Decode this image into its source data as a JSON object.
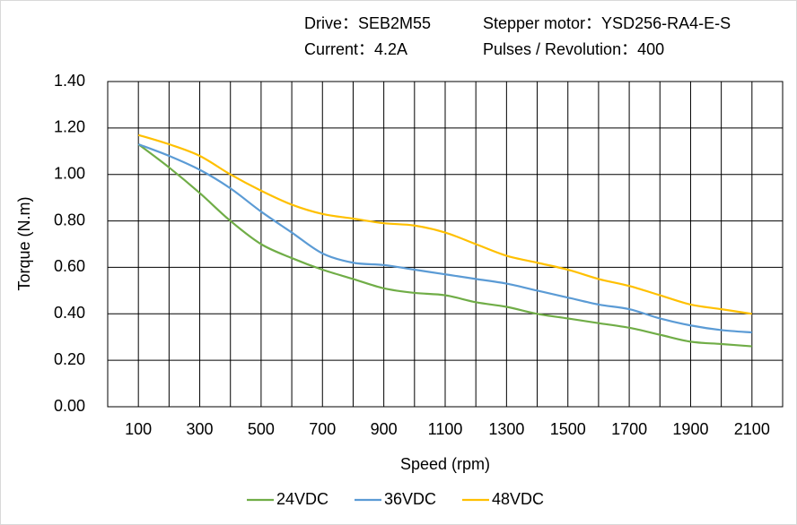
{
  "chart_data": {
    "type": "line",
    "annotations": [
      "Drive：SEB2M55",
      "Stepper motor：YSD256-RA4-E-S",
      "Current：4.2A",
      "Pulses / Revolution：400"
    ],
    "xlabel": "Speed (rpm)",
    "ylabel": "Torque (N.m)",
    "x": [
      100,
      200,
      300,
      400,
      500,
      600,
      700,
      800,
      900,
      1000,
      1100,
      1200,
      1300,
      1400,
      1500,
      1600,
      1700,
      1800,
      1900,
      2000,
      2100
    ],
    "series": [
      {
        "name": "24VDC",
        "color": "#70ad47",
        "values": [
          1.13,
          1.03,
          0.92,
          0.8,
          0.7,
          0.64,
          0.59,
          0.55,
          0.51,
          0.49,
          0.48,
          0.45,
          0.43,
          0.4,
          0.38,
          0.36,
          0.34,
          0.31,
          0.28,
          0.27,
          0.26
        ]
      },
      {
        "name": "36VDC",
        "color": "#5b9bd5",
        "values": [
          1.13,
          1.08,
          1.02,
          0.94,
          0.84,
          0.75,
          0.66,
          0.62,
          0.61,
          0.59,
          0.57,
          0.55,
          0.53,
          0.5,
          0.47,
          0.44,
          0.42,
          0.38,
          0.35,
          0.33,
          0.32
        ]
      },
      {
        "name": "48VDC",
        "color": "#ffc000",
        "values": [
          1.17,
          1.13,
          1.08,
          1.0,
          0.93,
          0.87,
          0.83,
          0.81,
          0.79,
          0.78,
          0.75,
          0.7,
          0.65,
          0.62,
          0.59,
          0.55,
          0.52,
          0.48,
          0.44,
          0.42,
          0.4
        ]
      }
    ],
    "xlim": [
      0,
      2200
    ],
    "xticks": [
      100,
      300,
      500,
      700,
      900,
      1100,
      1300,
      1500,
      1700,
      1900,
      2100
    ],
    "xminor": [
      200,
      400,
      600,
      800,
      1000,
      1200,
      1400,
      1600,
      1800,
      2000
    ],
    "ylim": [
      0,
      1.4
    ],
    "yticks": [
      {
        "value": 0,
        "label": "0.00"
      },
      {
        "value": 0.2,
        "label": "0.20"
      },
      {
        "value": 0.4,
        "label": "0.40"
      },
      {
        "value": 0.6,
        "label": "0.60"
      },
      {
        "value": 0.8,
        "label": "0.80"
      },
      {
        "value": 1.0,
        "label": "1.00"
      },
      {
        "value": 1.2,
        "label": "1.20"
      },
      {
        "value": 1.4,
        "label": "1.40"
      }
    ],
    "grid": true,
    "smooth": true,
    "legend": "bottom"
  }
}
